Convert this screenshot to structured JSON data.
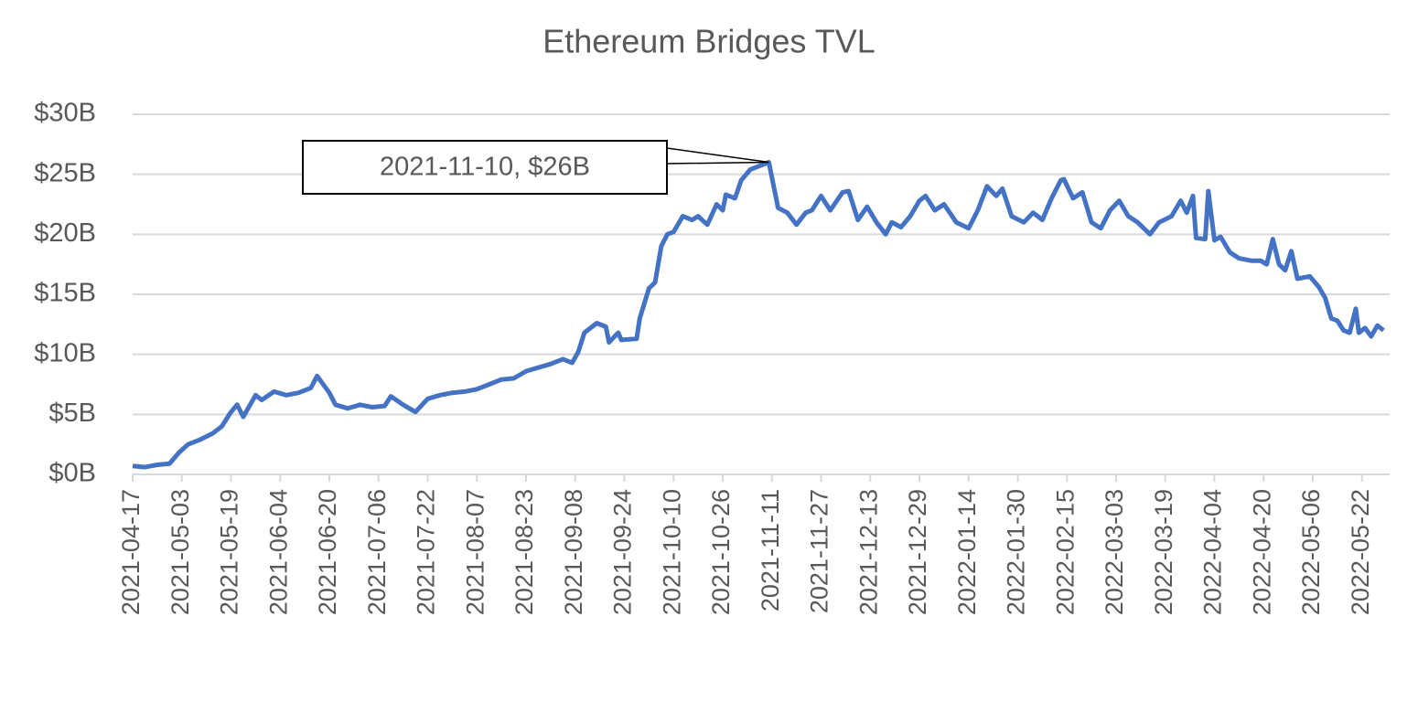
{
  "chart_data": {
    "type": "line",
    "title": "Ethereum Bridges TVL",
    "x": [
      "2021-04-17",
      "2021-04-21",
      "2021-04-25",
      "2021-04-29",
      "2021-05-02",
      "2021-05-05",
      "2021-05-09",
      "2021-05-13",
      "2021-05-16",
      "2021-05-19",
      "2021-05-21",
      "2021-05-23",
      "2021-05-27",
      "2021-05-29",
      "2021-06-02",
      "2021-06-06",
      "2021-06-10",
      "2021-06-14",
      "2021-06-16",
      "2021-06-20",
      "2021-06-22",
      "2021-06-26",
      "2021-06-30",
      "2021-07-04",
      "2021-07-08",
      "2021-07-10",
      "2021-07-14",
      "2021-07-18",
      "2021-07-22",
      "2021-07-26",
      "2021-07-30",
      "2021-08-03",
      "2021-08-07",
      "2021-08-11",
      "2021-08-15",
      "2021-08-19",
      "2021-08-23",
      "2021-08-27",
      "2021-08-31",
      "2021-09-04",
      "2021-09-07",
      "2021-09-09",
      "2021-09-11",
      "2021-09-15",
      "2021-09-18",
      "2021-09-19",
      "2021-09-22",
      "2021-09-23",
      "2021-09-28",
      "2021-09-29",
      "2021-10-02",
      "2021-10-04",
      "2021-10-06",
      "2021-10-08",
      "2021-10-10",
      "2021-10-13",
      "2021-10-16",
      "2021-10-18",
      "2021-10-21",
      "2021-10-24",
      "2021-10-26",
      "2021-10-27",
      "2021-10-30",
      "2021-11-01",
      "2021-11-04",
      "2021-11-10",
      "2021-11-13",
      "2021-11-16",
      "2021-11-19",
      "2021-11-22",
      "2021-11-24",
      "2021-11-27",
      "2021-11-30",
      "2021-12-04",
      "2021-12-06",
      "2021-12-09",
      "2021-12-12",
      "2021-12-15",
      "2021-12-18",
      "2021-12-20",
      "2021-12-23",
      "2021-12-26",
      "2021-12-29",
      "2021-12-31",
      "2022-01-03",
      "2022-01-06",
      "2022-01-10",
      "2022-01-14",
      "2022-01-17",
      "2022-01-20",
      "2022-01-23",
      "2022-01-25",
      "2022-01-28",
      "2022-02-01",
      "2022-02-04",
      "2022-02-07",
      "2022-02-10",
      "2022-02-13",
      "2022-02-14",
      "2022-02-17",
      "2022-02-20",
      "2022-02-23",
      "2022-02-26",
      "2022-03-01",
      "2022-03-04",
      "2022-03-07",
      "2022-03-10",
      "2022-03-14",
      "2022-03-17",
      "2022-03-21",
      "2022-03-24",
      "2022-03-26",
      "2022-03-28",
      "2022-03-29",
      "2022-04-01",
      "2022-04-02",
      "2022-04-04",
      "2022-04-06",
      "2022-04-09",
      "2022-04-12",
      "2022-04-16",
      "2022-04-19",
      "2022-04-21",
      "2022-04-23",
      "2022-04-25",
      "2022-04-27",
      "2022-04-29",
      "2022-05-01",
      "2022-05-05",
      "2022-05-08",
      "2022-05-10",
      "2022-05-12",
      "2022-05-14",
      "2022-05-16",
      "2022-05-18",
      "2022-05-20",
      "2022-05-21",
      "2022-05-23",
      "2022-05-25",
      "2022-05-27",
      "2022-05-29"
    ],
    "series": [
      {
        "name": "TVL",
        "color": "#4472c4",
        "values": [
          0.7,
          0.6,
          0.8,
          0.9,
          1.8,
          2.5,
          2.9,
          3.4,
          4.0,
          5.2,
          5.8,
          4.8,
          6.6,
          6.2,
          6.9,
          6.6,
          6.8,
          7.2,
          8.2,
          6.8,
          5.8,
          5.5,
          5.8,
          5.6,
          5.7,
          6.5,
          5.8,
          5.2,
          6.3,
          6.6,
          6.8,
          6.9,
          7.1,
          7.5,
          7.9,
          8.0,
          8.6,
          8.9,
          9.2,
          9.6,
          9.3,
          10.2,
          11.8,
          12.6,
          12.3,
          11.0,
          11.8,
          11.2,
          11.3,
          13,
          15.5,
          16,
          19,
          20,
          20.2,
          21.5,
          21.2,
          21.5,
          20.8,
          22.5,
          22,
          23.3,
          23,
          24.5,
          25.4,
          26,
          22.2,
          21.8,
          20.8,
          21.8,
          22.0,
          23.2,
          22,
          23.5,
          23.6,
          21.2,
          22.3,
          21.0,
          20.0,
          21.0,
          20.6,
          21.5,
          22.8,
          23.2,
          22.0,
          22.5,
          21.0,
          20.5,
          22.0,
          24.0,
          23.2,
          23.8,
          21.5,
          21.0,
          21.8,
          21.2,
          23.0,
          24.5,
          24.6,
          23.0,
          23.5,
          21.0,
          20.5,
          22.0,
          22.8,
          21.5,
          21.0,
          20.0,
          21.0,
          21.5,
          22.8,
          21.8,
          23.2,
          19.7,
          19.6,
          23.6,
          19.5,
          19.8,
          18.5,
          18.0,
          17.8,
          17.8,
          17.5,
          19.6,
          17.5,
          17.0,
          18.6,
          16.3,
          16.5,
          15.6,
          14.7,
          13.0,
          12.8,
          12.0,
          11.8,
          13.8,
          11.8,
          12.2,
          11.5,
          12.4,
          12.0
        ]
      }
    ],
    "xlim": [
      "2021-04-17",
      "2022-05-31"
    ],
    "xticks": [
      "2021-04-17",
      "2021-05-03",
      "2021-05-19",
      "2021-06-04",
      "2021-06-20",
      "2021-07-06",
      "2021-07-22",
      "2021-08-07",
      "2021-08-23",
      "2021-09-08",
      "2021-09-24",
      "2021-10-10",
      "2021-10-26",
      "2021-11-11",
      "2021-11-27",
      "2021-12-13",
      "2021-12-29",
      "2022-01-14",
      "2022-01-30",
      "2022-02-15",
      "2022-03-03",
      "2022-03-19",
      "2022-04-04",
      "2022-04-20",
      "2022-05-06",
      "2022-05-22"
    ],
    "ylim": [
      0,
      30
    ],
    "yticks": [
      {
        "value": 0,
        "label": "$0B"
      },
      {
        "value": 5,
        "label": "$5B"
      },
      {
        "value": 10,
        "label": "$10B"
      },
      {
        "value": 15,
        "label": "$15B"
      },
      {
        "value": 20,
        "label": "$20B"
      },
      {
        "value": 25,
        "label": "$25B"
      },
      {
        "value": 30,
        "label": "$30B"
      }
    ],
    "grid": true,
    "annotation": {
      "text": "2021-11-10, $26B",
      "x": "2021-11-10",
      "y": 26
    }
  }
}
